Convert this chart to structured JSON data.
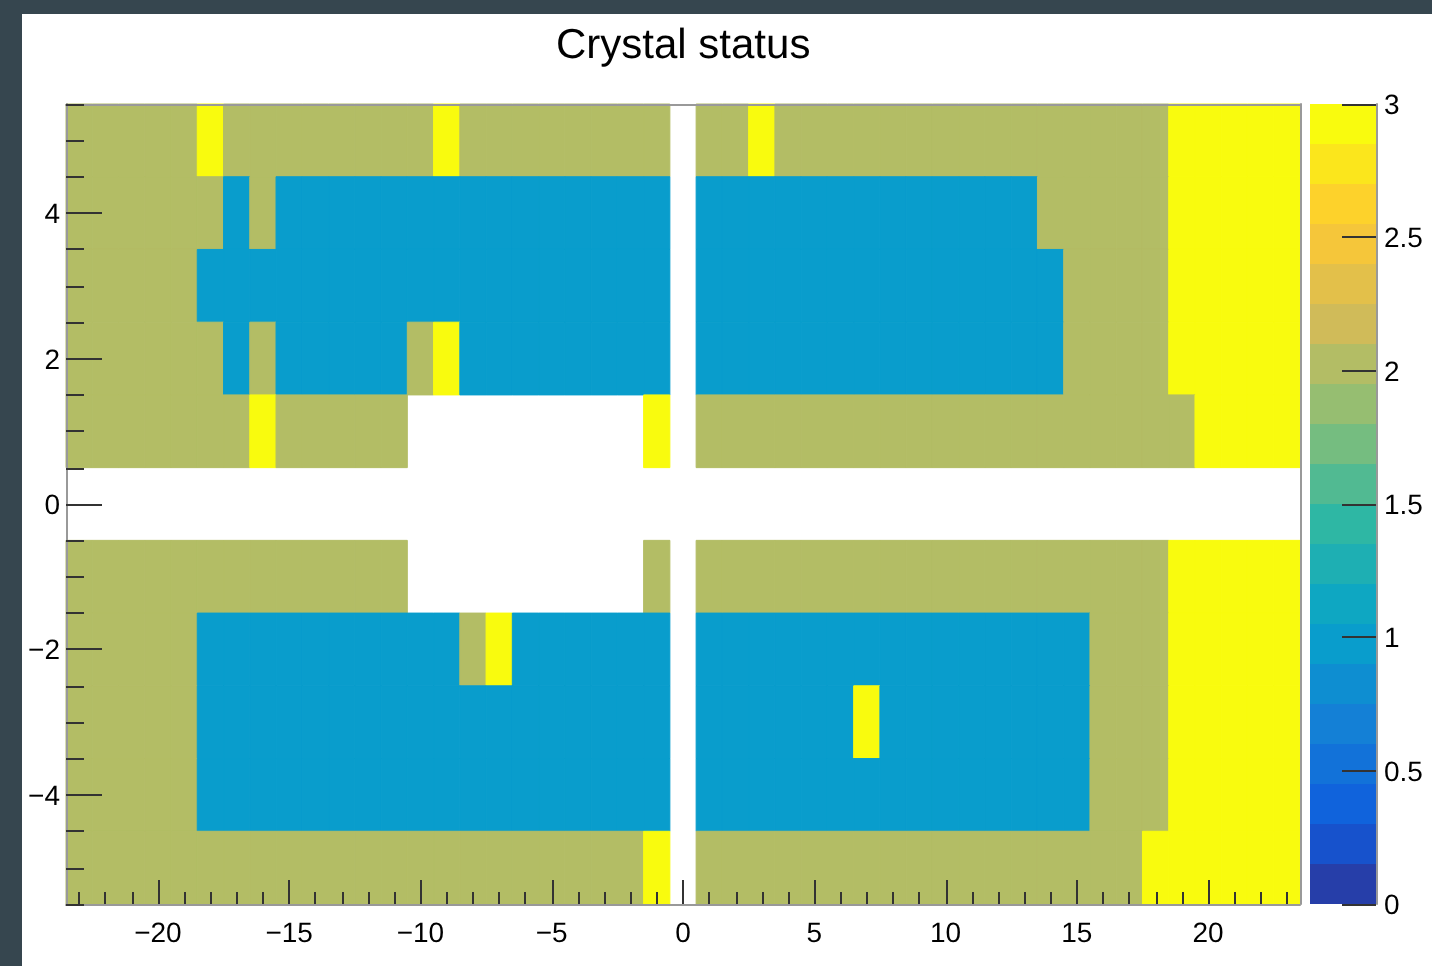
{
  "chart_data": {
    "type": "heatmap",
    "title": "Crystal status",
    "categories": [
      null,
      null,
      null,
      "−20",
      null,
      null,
      null,
      null,
      "−15",
      null,
      null,
      null,
      null,
      "−10",
      null,
      null,
      null,
      null,
      "−5",
      null,
      null,
      null,
      null,
      "0",
      null,
      null,
      null,
      null,
      "5",
      null,
      null,
      null,
      null,
      "10",
      null,
      null,
      null,
      null,
      "15",
      null,
      null,
      null,
      null,
      "20",
      null,
      null,
      null
    ],
    "y_categories": [
      null,
      "4",
      null,
      "2",
      null,
      "0",
      null,
      "−2",
      null,
      "−4",
      null
    ],
    "cells": [
      [
        2,
        2,
        2,
        2,
        2,
        3,
        2,
        2,
        2,
        2,
        2,
        2,
        2,
        2,
        3,
        2,
        2,
        2,
        2,
        2,
        2,
        2,
        2,
        null,
        2,
        2,
        3,
        2,
        2,
        2,
        2,
        2,
        2,
        2,
        2,
        2,
        2,
        2,
        2,
        2,
        2,
        2,
        3,
        3,
        3,
        3,
        3
      ],
      [
        2,
        2,
        2,
        2,
        2,
        2,
        1,
        2,
        1,
        1,
        1,
        1,
        1,
        1,
        1,
        1,
        1,
        1,
        1,
        1,
        1,
        1,
        1,
        null,
        1,
        1,
        1,
        1,
        1,
        1,
        1,
        1,
        1,
        1,
        1,
        1,
        1,
        2,
        2,
        2,
        2,
        2,
        3,
        3,
        3,
        3,
        3
      ],
      [
        2,
        2,
        2,
        2,
        2,
        1,
        1,
        1,
        1,
        1,
        1,
        1,
        1,
        1,
        1,
        1,
        1,
        1,
        1,
        1,
        1,
        1,
        1,
        null,
        1,
        1,
        1,
        1,
        1,
        1,
        1,
        1,
        1,
        1,
        1,
        1,
        1,
        1,
        2,
        2,
        2,
        2,
        3,
        3,
        3,
        3,
        3
      ],
      [
        2,
        2,
        2,
        2,
        2,
        2,
        1,
        2,
        1,
        1,
        1,
        1,
        1,
        2,
        3,
        1,
        1,
        1,
        1,
        1,
        1,
        1,
        1,
        null,
        1,
        1,
        1,
        1,
        1,
        1,
        1,
        1,
        1,
        1,
        1,
        1,
        1,
        1,
        2,
        2,
        2,
        2,
        3,
        3,
        3,
        3,
        3
      ],
      [
        2,
        2,
        2,
        2,
        2,
        2,
        2,
        3,
        2,
        2,
        2,
        2,
        2,
        null,
        null,
        null,
        null,
        null,
        null,
        null,
        null,
        null,
        3,
        null,
        2,
        2,
        2,
        2,
        2,
        2,
        2,
        2,
        2,
        2,
        2,
        2,
        2,
        2,
        2,
        2,
        2,
        2,
        2,
        3,
        3,
        3,
        3
      ],
      [
        null,
        null,
        null,
        null,
        null,
        null,
        null,
        null,
        null,
        null,
        null,
        null,
        null,
        null,
        null,
        null,
        null,
        null,
        null,
        null,
        null,
        null,
        null,
        null,
        null,
        null,
        null,
        null,
        null,
        null,
        null,
        null,
        null,
        null,
        null,
        null,
        null,
        null,
        null,
        null,
        null,
        null,
        null,
        null,
        null,
        null,
        null
      ],
      [
        2,
        2,
        2,
        2,
        2,
        2,
        2,
        2,
        2,
        2,
        2,
        2,
        2,
        null,
        null,
        null,
        null,
        null,
        null,
        null,
        null,
        null,
        2,
        null,
        2,
        2,
        2,
        2,
        2,
        2,
        2,
        2,
        2,
        2,
        2,
        2,
        2,
        2,
        2,
        2,
        2,
        2,
        3,
        3,
        3,
        3,
        3
      ],
      [
        2,
        2,
        2,
        2,
        2,
        1,
        1,
        1,
        1,
        1,
        1,
        1,
        1,
        1,
        1,
        2,
        3,
        1,
        1,
        1,
        1,
        1,
        1,
        null,
        1,
        1,
        1,
        1,
        1,
        1,
        1,
        1,
        1,
        1,
        1,
        1,
        1,
        1,
        1,
        2,
        2,
        2,
        3,
        3,
        3,
        3,
        3
      ],
      [
        2,
        2,
        2,
        2,
        2,
        1,
        1,
        1,
        1,
        1,
        1,
        1,
        1,
        1,
        1,
        1,
        1,
        1,
        1,
        1,
        1,
        1,
        1,
        null,
        1,
        1,
        1,
        1,
        1,
        1,
        3,
        1,
        1,
        1,
        1,
        1,
        1,
        1,
        1,
        2,
        2,
        2,
        3,
        3,
        3,
        3,
        3
      ],
      [
        2,
        2,
        2,
        2,
        2,
        1,
        1,
        1,
        1,
        1,
        1,
        1,
        1,
        1,
        1,
        1,
        1,
        1,
        1,
        1,
        1,
        1,
        1,
        null,
        1,
        1,
        1,
        1,
        1,
        1,
        1,
        1,
        1,
        1,
        1,
        1,
        1,
        1,
        1,
        2,
        2,
        2,
        3,
        3,
        3,
        3,
        3
      ],
      [
        2,
        2,
        2,
        2,
        2,
        2,
        2,
        2,
        2,
        2,
        2,
        2,
        2,
        2,
        2,
        2,
        2,
        2,
        2,
        2,
        2,
        2,
        3,
        null,
        2,
        2,
        2,
        2,
        2,
        2,
        2,
        2,
        2,
        2,
        2,
        2,
        2,
        2,
        2,
        2,
        2,
        3,
        3,
        3,
        3,
        3,
        3
      ]
    ],
    "clim": [
      0,
      3
    ],
    "cticks": [
      0,
      0.5,
      1,
      1.5,
      2,
      2.5,
      3
    ]
  }
}
